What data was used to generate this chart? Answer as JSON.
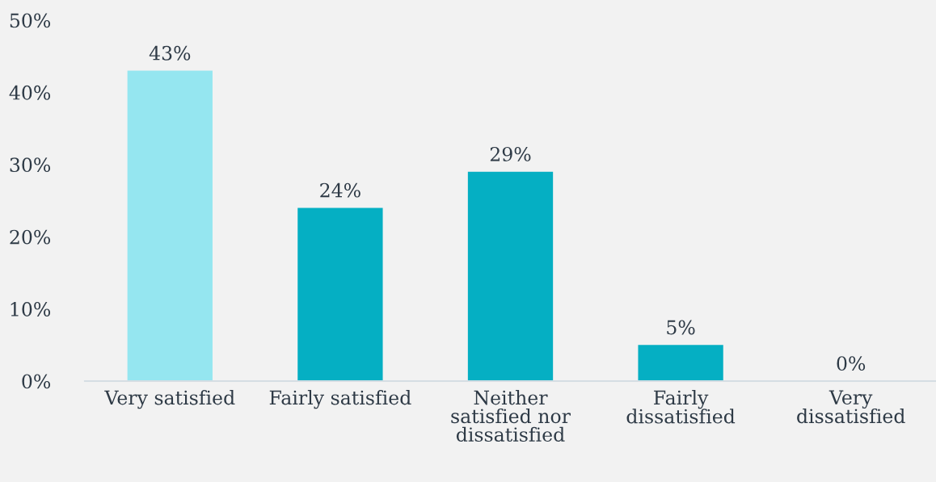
{
  "chart_data": {
    "type": "bar",
    "categories": [
      "Very satisfied",
      "Fairly satisfied",
      "Neither\nsatisfied nor\ndissatisfied",
      "Fairly\ndissatisfied",
      "Very\ndissatisfied"
    ],
    "values": [
      43,
      24,
      29,
      5,
      0
    ],
    "colors": [
      "#95e6f0",
      "#05afc3",
      "#05afc3",
      "#05afc3",
      "#05afc3"
    ],
    "value_labels": [
      "43%",
      "24%",
      "29%",
      "5%",
      "0%"
    ],
    "ylim": [
      0,
      50
    ],
    "yticks": [
      {
        "value": 0,
        "label": "0%"
      },
      {
        "value": 10,
        "label": "10%"
      },
      {
        "value": 20,
        "label": "20%"
      },
      {
        "value": 30,
        "label": "30%"
      },
      {
        "value": 40,
        "label": "40%"
      },
      {
        "value": 50,
        "label": "50%"
      }
    ],
    "grid": false,
    "legend": false
  }
}
